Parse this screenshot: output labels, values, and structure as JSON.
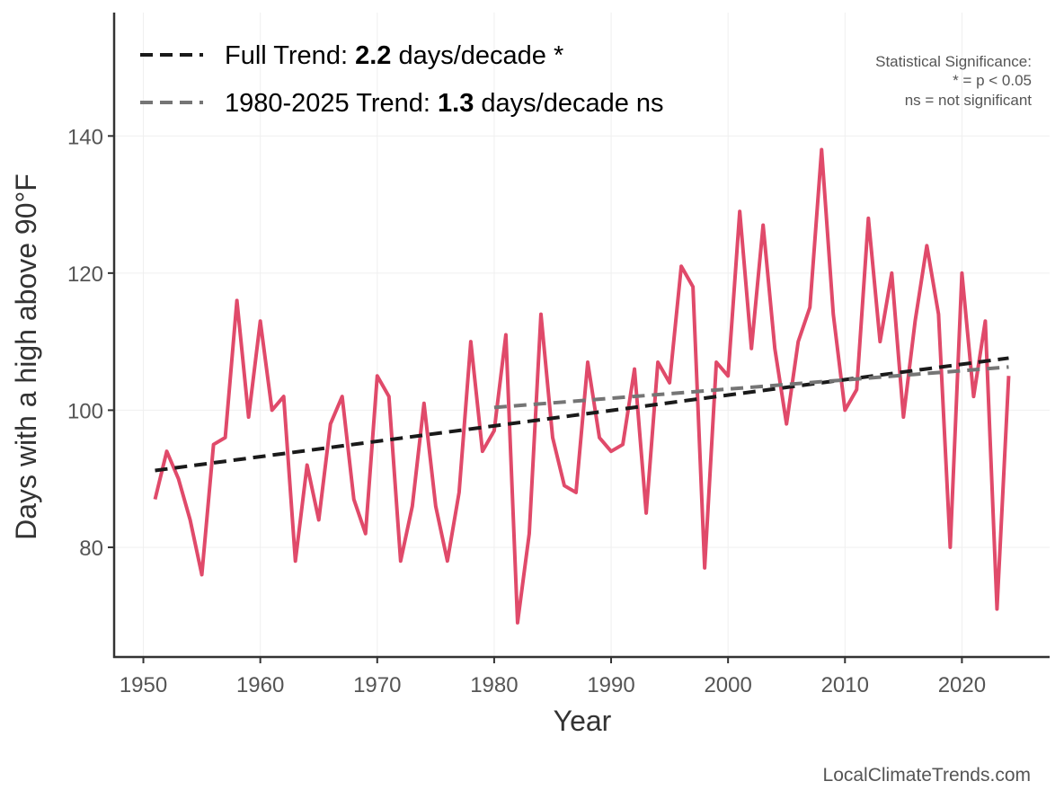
{
  "chart_data": {
    "type": "line",
    "xlabel": "Year",
    "ylabel": "Days with a high above 90°F",
    "xlim": [
      1947.5,
      2027.5
    ],
    "ylim": [
      64,
      158
    ],
    "xticks": [
      1950,
      1960,
      1970,
      1980,
      1990,
      2000,
      2010,
      2020
    ],
    "yticks": [
      80,
      100,
      120,
      140
    ],
    "grid": true,
    "legend_position": "top-left",
    "series": [
      {
        "color": "#e04a6a",
        "x": [
          1951,
          1952,
          1953,
          1954,
          1955,
          1956,
          1957,
          1958,
          1959,
          1960,
          1961,
          1962,
          1963,
          1964,
          1965,
          1966,
          1967,
          1968,
          1969,
          1970,
          1971,
          1972,
          1973,
          1974,
          1975,
          1976,
          1977,
          1978,
          1979,
          1980,
          1981,
          1982,
          1983,
          1984,
          1985,
          1986,
          1987,
          1988,
          1989,
          1990,
          1991,
          1992,
          1993,
          1994,
          1995,
          1996,
          1997,
          1998,
          1999,
          2000,
          2001,
          2002,
          2003,
          2004,
          2005,
          2006,
          2007,
          2008,
          2009,
          2010,
          2011,
          2012,
          2013,
          2014,
          2015,
          2016,
          2017,
          2018,
          2019,
          2020,
          2021,
          2022,
          2023,
          2024
        ],
        "y": [
          87,
          94,
          90,
          84,
          76,
          95,
          96,
          116,
          99,
          113,
          100,
          102,
          78,
          92,
          84,
          98,
          102,
          87,
          82,
          105,
          102,
          78,
          86,
          101,
          86,
          78,
          88,
          110,
          94,
          97,
          111,
          69,
          82,
          114,
          96,
          89,
          88,
          107,
          96,
          94,
          95,
          106,
          85,
          107,
          104,
          121,
          118,
          77,
          107,
          105,
          129,
          109,
          127,
          109,
          98,
          110,
          115,
          138,
          114,
          100,
          103,
          128,
          110,
          120,
          99,
          113,
          124,
          114,
          80,
          120,
          102,
          113,
          71,
          105
        ]
      }
    ],
    "trend_lines": [
      {
        "label_prefix": "Full Trend: ",
        "value": "2.2",
        "label_suffix": " days/decade *",
        "color": "#1a1a1a",
        "x": [
          1951,
          2024
        ],
        "y": [
          91.2,
          107.6
        ]
      },
      {
        "label_prefix": "1980-2025 Trend: ",
        "value": "1.3",
        "label_suffix": " days/decade ns",
        "color": "#757575",
        "x": [
          1980,
          2024
        ],
        "y": [
          100.4,
          106.3
        ]
      }
    ],
    "significance_note": [
      "Statistical Significance:",
      "* = p < 0.05",
      "ns = not significant"
    ],
    "source": "LocalClimateTrends.com"
  }
}
